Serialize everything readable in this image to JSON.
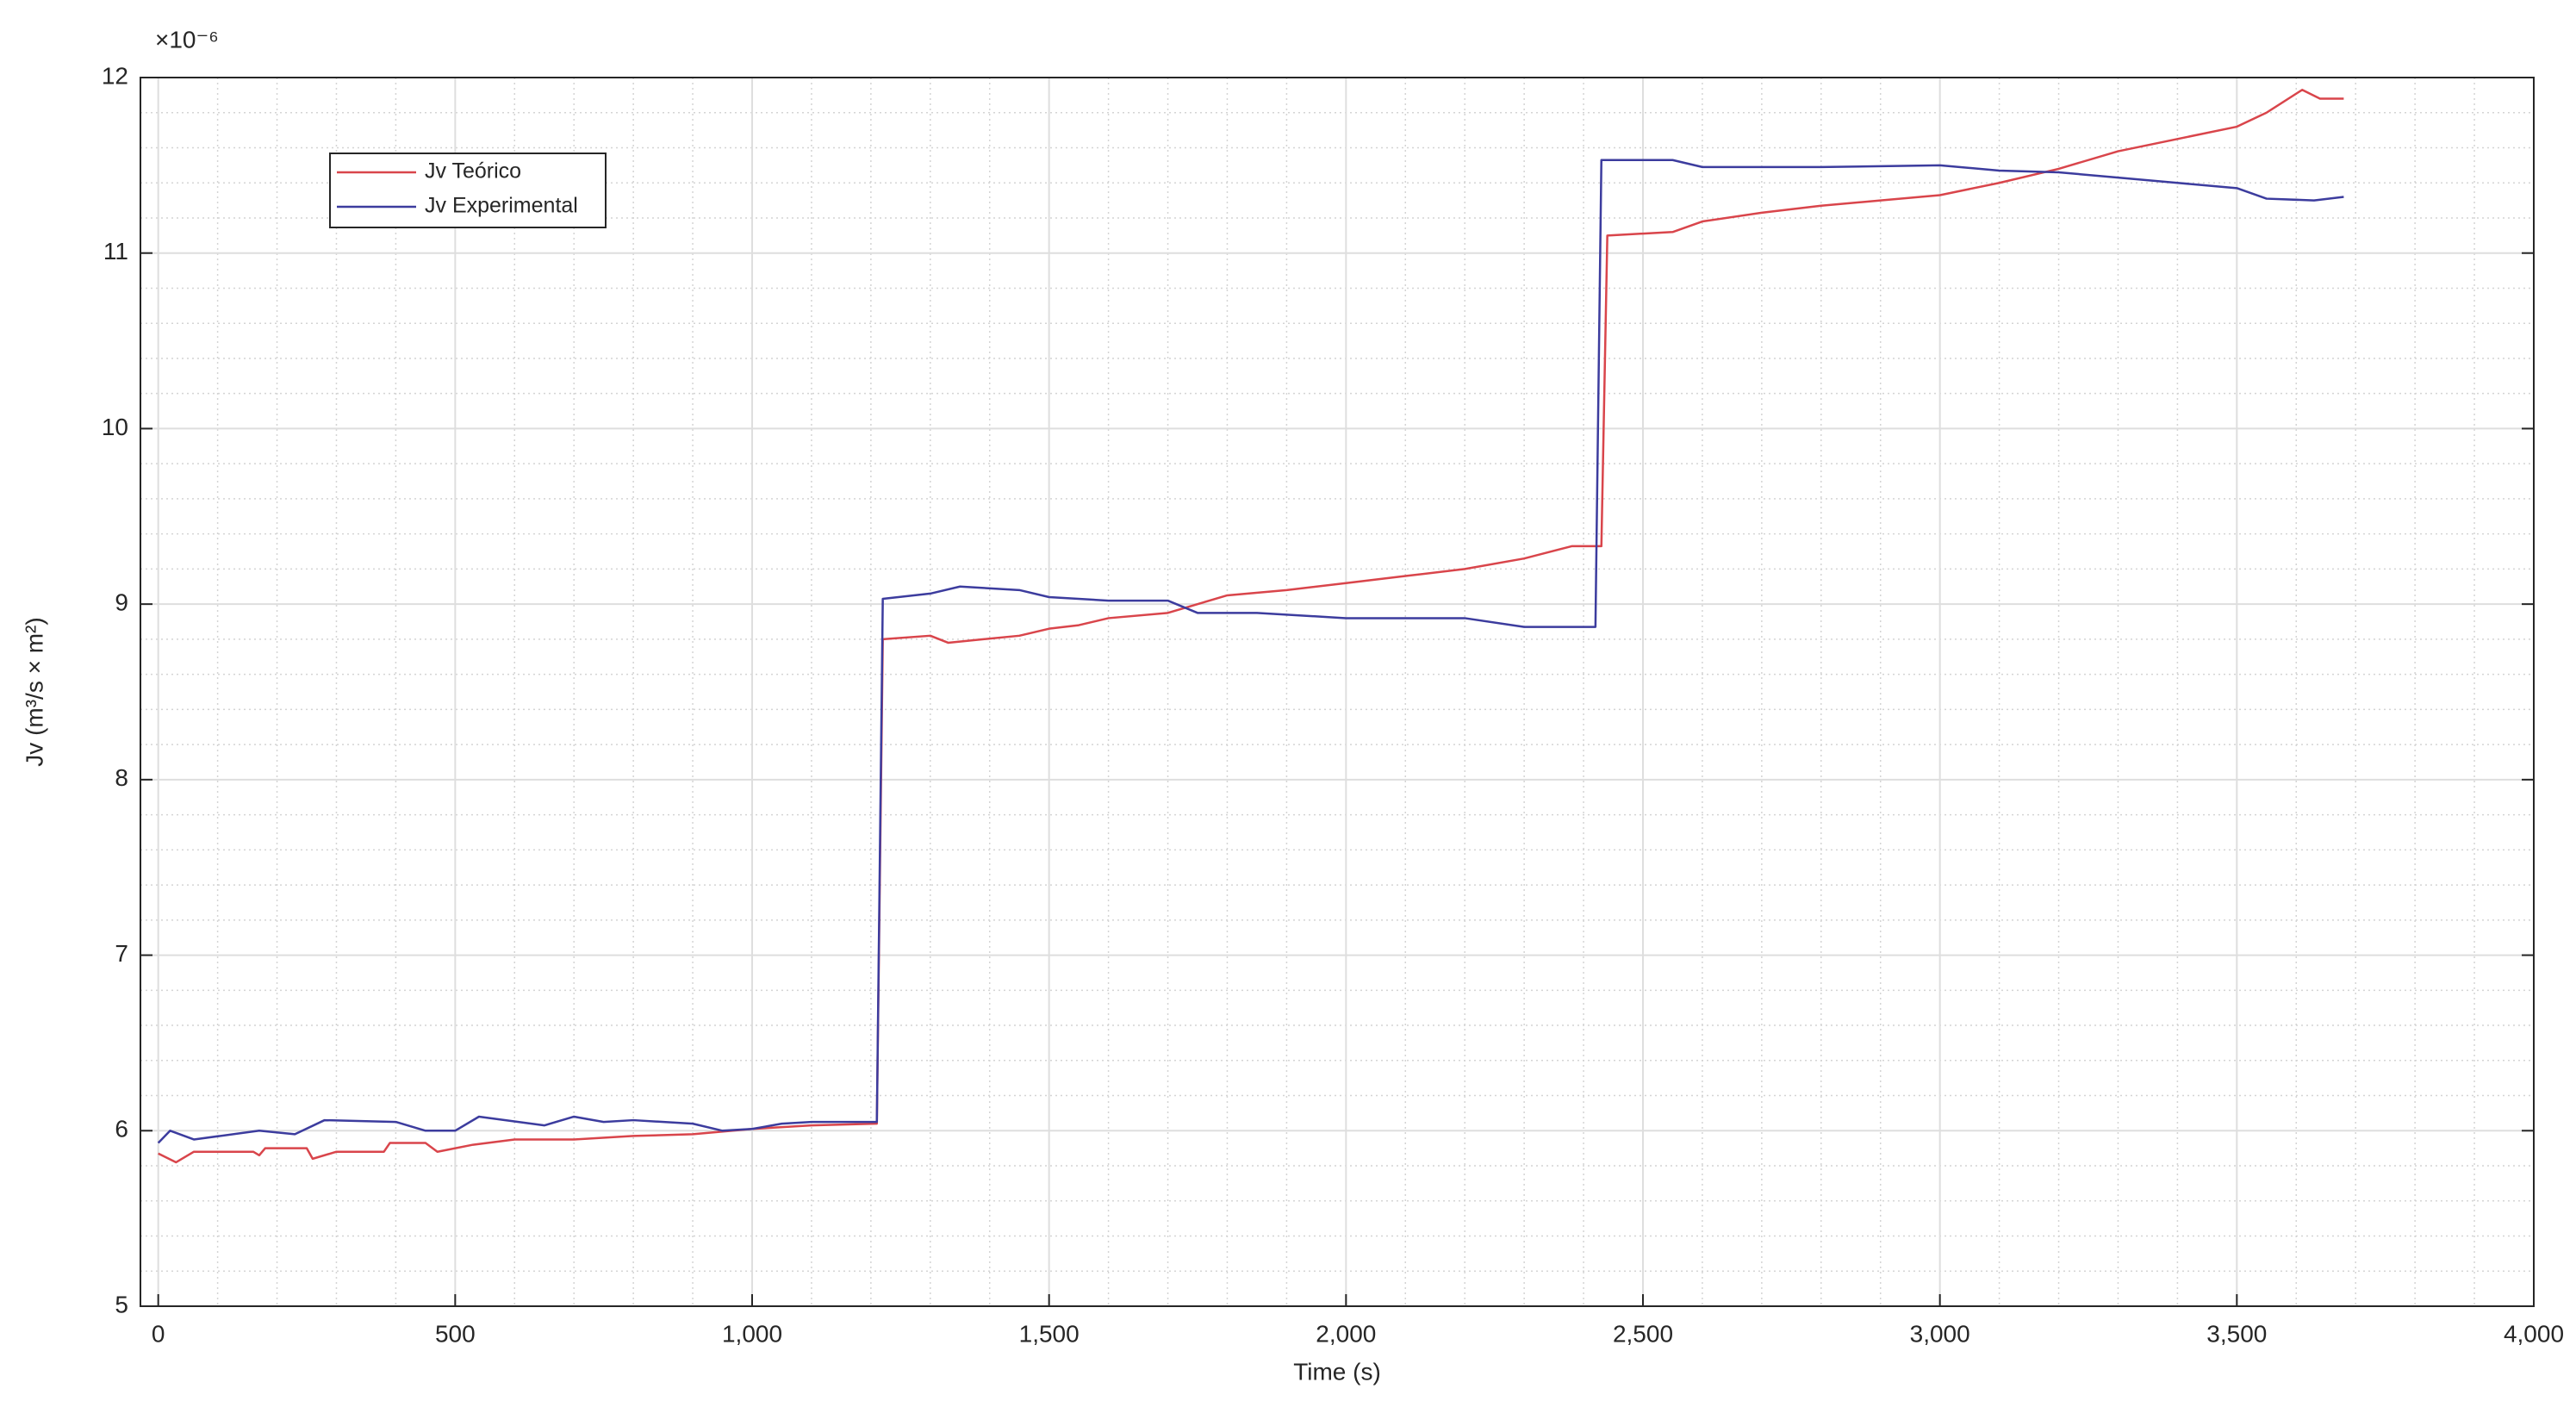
{
  "chart_data": {
    "type": "line",
    "exponent_label": "×10⁻⁶",
    "x_label": "Time (s)",
    "y_label": "Jv (m³/s × m²)",
    "xlim": [
      -30,
      4000
    ],
    "ylim": [
      5,
      12
    ],
    "xticks": [
      0,
      500,
      {
        "value": 1000,
        "label": "1,000"
      },
      {
        "value": 1500,
        "label": "1,500"
      },
      {
        "value": 2000,
        "label": "2,000"
      },
      {
        "value": 2500,
        "label": "2,500"
      },
      {
        "value": 3000,
        "label": "3,000"
      },
      {
        "value": 3500,
        "label": "3,500"
      },
      {
        "value": 4000,
        "label": "4,000"
      }
    ],
    "yticks": [
      5,
      6,
      7,
      8,
      9,
      10,
      11,
      12
    ],
    "grid": true,
    "minor_grid": true,
    "legend": "upper-left",
    "series": [
      {
        "name": "Jv Teórico",
        "color": "#d9454b",
        "x": [
          0,
          30,
          60,
          160,
          170,
          180,
          250,
          260,
          300,
          380,
          390,
          450,
          470,
          530,
          600,
          700,
          800,
          900,
          1000,
          1100,
          1210,
          1220,
          1300,
          1330,
          1450,
          1500,
          1550,
          1600,
          1700,
          1800,
          1900,
          2000,
          2100,
          2200,
          2300,
          2380,
          2430,
          2440,
          2550,
          2600,
          2700,
          2800,
          2900,
          3000,
          3100,
          3200,
          3300,
          3400,
          3500,
          3550,
          3610,
          3640,
          3680
        ],
        "values": [
          5.87,
          5.82,
          5.88,
          5.88,
          5.86,
          5.9,
          5.9,
          5.84,
          5.88,
          5.88,
          5.93,
          5.93,
          5.88,
          5.92,
          5.95,
          5.95,
          5.97,
          5.98,
          6.01,
          6.03,
          6.04,
          8.8,
          8.82,
          8.78,
          8.82,
          8.86,
          8.88,
          8.92,
          8.95,
          9.05,
          9.08,
          9.12,
          9.16,
          9.2,
          9.26,
          9.33,
          9.33,
          11.1,
          11.12,
          11.18,
          11.23,
          11.27,
          11.3,
          11.33,
          11.4,
          11.48,
          11.58,
          11.65,
          11.72,
          11.8,
          11.93,
          11.88,
          11.88
        ]
      },
      {
        "name": "Jv Experimental",
        "color": "#3c3c9e",
        "x": [
          0,
          20,
          60,
          170,
          230,
          280,
          400,
          450,
          500,
          540,
          650,
          700,
          750,
          800,
          900,
          950,
          1000,
          1050,
          1100,
          1210,
          1220,
          1300,
          1350,
          1450,
          1500,
          1600,
          1700,
          1750,
          1850,
          2000,
          2200,
          2300,
          2420,
          2430,
          2550,
          2600,
          2800,
          3000,
          3100,
          3200,
          3300,
          3400,
          3500,
          3550,
          3630,
          3680
        ],
        "values": [
          5.93,
          6.0,
          5.95,
          6.0,
          5.98,
          6.06,
          6.05,
          6.0,
          6.0,
          6.08,
          6.03,
          6.08,
          6.05,
          6.06,
          6.04,
          6.0,
          6.01,
          6.04,
          6.05,
          6.05,
          9.03,
          9.06,
          9.1,
          9.08,
          9.04,
          9.02,
          9.02,
          8.95,
          8.95,
          8.92,
          8.92,
          8.87,
          8.87,
          11.53,
          11.53,
          11.49,
          11.49,
          11.5,
          11.47,
          11.46,
          11.43,
          11.4,
          11.37,
          11.31,
          11.3,
          11.32
        ]
      }
    ]
  }
}
